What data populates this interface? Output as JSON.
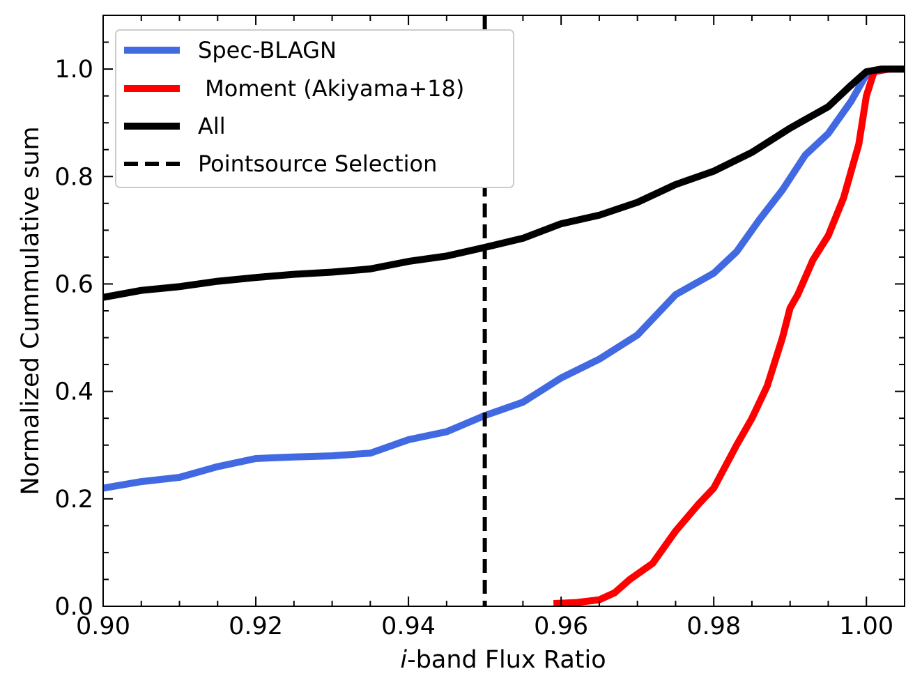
{
  "chart_data": {
    "type": "line",
    "xlabel_italic": "i",
    "xlabel_rest": "-band Flux Ratio",
    "ylabel": "Normalized  Cummulative sum",
    "xlim": [
      0.9,
      1.005
    ],
    "ylim": [
      0.0,
      1.1
    ],
    "xticks": [
      0.9,
      0.92,
      0.94,
      0.96,
      0.98,
      1.0
    ],
    "xtick_labels": [
      "0.90",
      "0.92",
      "0.94",
      "0.96",
      "0.98",
      "1.00"
    ],
    "yticks": [
      0.0,
      0.2,
      0.4,
      0.6,
      0.8,
      1.0
    ],
    "ytick_labels": [
      "0.0",
      "0.2",
      "0.4",
      "0.6",
      "0.8",
      "1.0"
    ],
    "legend_position": "upper-left",
    "vline": {
      "name": "Pointsource Selection",
      "x": 0.95,
      "color": "#000000",
      "style": "dashed"
    },
    "series": [
      {
        "name": "Spec-BLAGN",
        "color": "#4169e1",
        "x": [
          0.9,
          0.905,
          0.91,
          0.915,
          0.92,
          0.925,
          0.93,
          0.935,
          0.94,
          0.945,
          0.95,
          0.955,
          0.96,
          0.965,
          0.97,
          0.975,
          0.98,
          0.983,
          0.986,
          0.989,
          0.992,
          0.995,
          0.998,
          1.0,
          1.002,
          1.005
        ],
        "y": [
          0.22,
          0.232,
          0.24,
          0.26,
          0.275,
          0.278,
          0.28,
          0.285,
          0.31,
          0.325,
          0.355,
          0.38,
          0.425,
          0.46,
          0.505,
          0.58,
          0.62,
          0.66,
          0.72,
          0.775,
          0.84,
          0.88,
          0.94,
          0.99,
          1.0,
          1.0
        ]
      },
      {
        "name": " Moment (Akiyama+18)",
        "color": "#ff0000",
        "x": [
          0.959,
          0.962,
          0.965,
          0.967,
          0.969,
          0.972,
          0.975,
          0.978,
          0.98,
          0.983,
          0.985,
          0.987,
          0.989,
          0.99,
          0.991,
          0.993,
          0.995,
          0.997,
          0.999,
          1.0,
          1.001,
          1.003,
          1.005
        ],
        "y": [
          0.005,
          0.007,
          0.012,
          0.025,
          0.05,
          0.08,
          0.14,
          0.19,
          0.22,
          0.3,
          0.35,
          0.41,
          0.5,
          0.555,
          0.58,
          0.645,
          0.69,
          0.76,
          0.86,
          0.95,
          0.995,
          1.0,
          1.0
        ]
      },
      {
        "name": "All",
        "color": "#000000",
        "x": [
          0.9,
          0.905,
          0.91,
          0.915,
          0.92,
          0.925,
          0.93,
          0.935,
          0.94,
          0.945,
          0.95,
          0.955,
          0.96,
          0.965,
          0.97,
          0.975,
          0.98,
          0.985,
          0.99,
          0.995,
          0.998,
          1.0,
          1.002,
          1.005
        ],
        "y": [
          0.575,
          0.588,
          0.595,
          0.605,
          0.612,
          0.618,
          0.622,
          0.628,
          0.642,
          0.652,
          0.668,
          0.685,
          0.712,
          0.728,
          0.752,
          0.785,
          0.81,
          0.845,
          0.89,
          0.93,
          0.97,
          0.995,
          1.0,
          1.0
        ]
      }
    ]
  }
}
